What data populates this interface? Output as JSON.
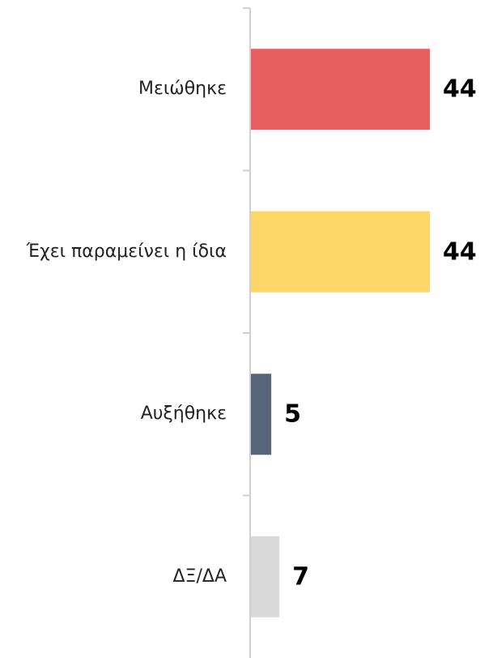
{
  "chart_data": {
    "type": "barh",
    "categories": [
      "Μειώθηκε",
      "Έχει παραμείνει η ίδια",
      "Αυξήθηκε",
      "ΔΞ/ΔΑ"
    ],
    "values": [
      44,
      44,
      5,
      7
    ],
    "colors": [
      "#e85d5f",
      "#fdd668",
      "#566578",
      "#d9d9d9"
    ]
  }
}
